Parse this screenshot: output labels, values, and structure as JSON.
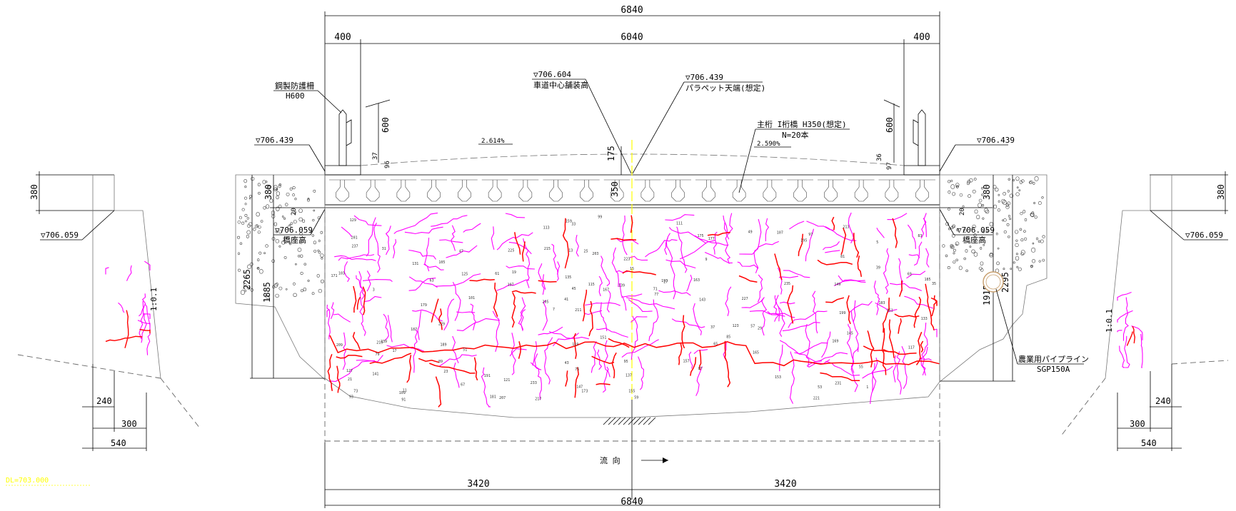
{
  "colors": {
    "crack_minor": "#ff00ff",
    "crack_major": "#ff0000",
    "centerline": "#ffff00",
    "outline": "#000000"
  },
  "dimensions": {
    "total_top": "6840",
    "left_edge": "400",
    "roadway": "6040",
    "right_edge": "400",
    "half_left": "3420",
    "half_right": "3420",
    "total_bottom": "6840",
    "guard_height_left": "600",
    "guard_height_right": "600",
    "guard_base_left_a": "37",
    "guard_base_left_b": "96",
    "guard_base_right_a": "36",
    "guard_base_right_b": "97",
    "crown_175": "175",
    "girder_350": "350",
    "abut_left_380": "380",
    "abut_left_20": "20",
    "abut_left_2265": "2265",
    "abut_left_1885": "1885",
    "abut_right_380": "380",
    "abut_right_20": "20",
    "abut_right_2295": "2295",
    "abut_right_1915": "1915",
    "wing_left_380": "380",
    "wing_left_240": "240",
    "wing_left_300": "300",
    "wing_left_540": "540",
    "wing_right_380": "380",
    "wing_right_240": "240",
    "wing_right_300": "300",
    "wing_right_540": "540"
  },
  "labels": {
    "guardrail_name": "鋼製防護柵",
    "guardrail_height": "H600",
    "center_elev": "▽706.604",
    "center_elev_desc": "車道中心舗装高",
    "parapet_elev": "▽706.439",
    "parapet_desc": "パラペット天端(想定)",
    "girder_desc": "主桁 I桁橋 H350(想定)",
    "girder_count": "N=20本",
    "slope_left": "2.614%",
    "slope_right": "2.590%",
    "elev_left_top": "▽706.439",
    "elev_right_top": "▽706.439",
    "elev_left_seat": "▽706.059",
    "seat_left_desc": "橋座高",
    "elev_right_seat": "▽706.059",
    "seat_right_desc": "橋座高",
    "elev_wing_left": "▽706.059",
    "elev_wing_right": "▽706.059",
    "pipeline_name": "農業用パイプライン",
    "pipeline_spec": "SGP150A",
    "flow_direction": "流 向",
    "slope_ratio_left": "1:0.1",
    "slope_ratio_right": "1:0.1",
    "datum_note": "DL=703.000"
  }
}
